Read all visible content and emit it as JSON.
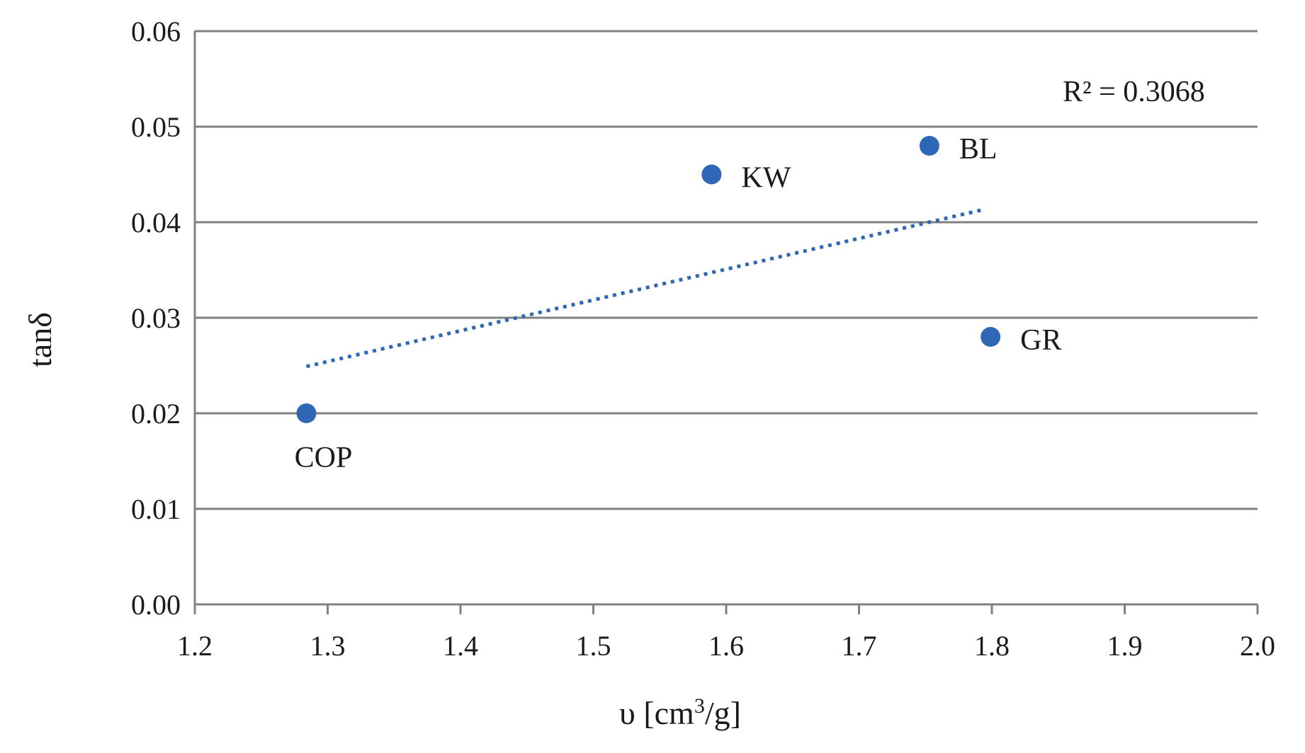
{
  "chart_data": {
    "type": "scatter",
    "title": "",
    "xlabel": "υ [cm3/g]",
    "xlabel_base": "υ [cm",
    "xlabel_sup": "3",
    "xlabel_tail": "/g]",
    "ylabel": "tanδ",
    "xlim": [
      1.2,
      2.0
    ],
    "ylim": [
      0.0,
      0.06
    ],
    "x_ticks": [
      "1.2",
      "1.3",
      "1.4",
      "1.5",
      "1.6",
      "1.7",
      "1.8",
      "1.9",
      "2.0"
    ],
    "y_ticks": [
      "0.00",
      "0.01",
      "0.02",
      "0.03",
      "0.04",
      "0.05",
      "0.06"
    ],
    "grid": true,
    "points": [
      {
        "label": "COP",
        "x": 1.284,
        "y": 0.02,
        "label_side": "below"
      },
      {
        "label": "KW",
        "x": 1.589,
        "y": 0.045,
        "label_side": "right"
      },
      {
        "label": "BL",
        "x": 1.753,
        "y": 0.048,
        "label_side": "right"
      },
      {
        "label": "GR",
        "x": 1.799,
        "y": 0.028,
        "label_side": "right"
      }
    ],
    "trendline": {
      "type": "linear",
      "x_start": 1.284,
      "y_start": 0.0249,
      "x_end": 1.793,
      "y_end": 0.0413,
      "r_squared_label": "R² = 0.3068"
    },
    "colors": {
      "series": "#2e67b5",
      "grid": "#808080",
      "text": "#1a1a1a"
    }
  }
}
